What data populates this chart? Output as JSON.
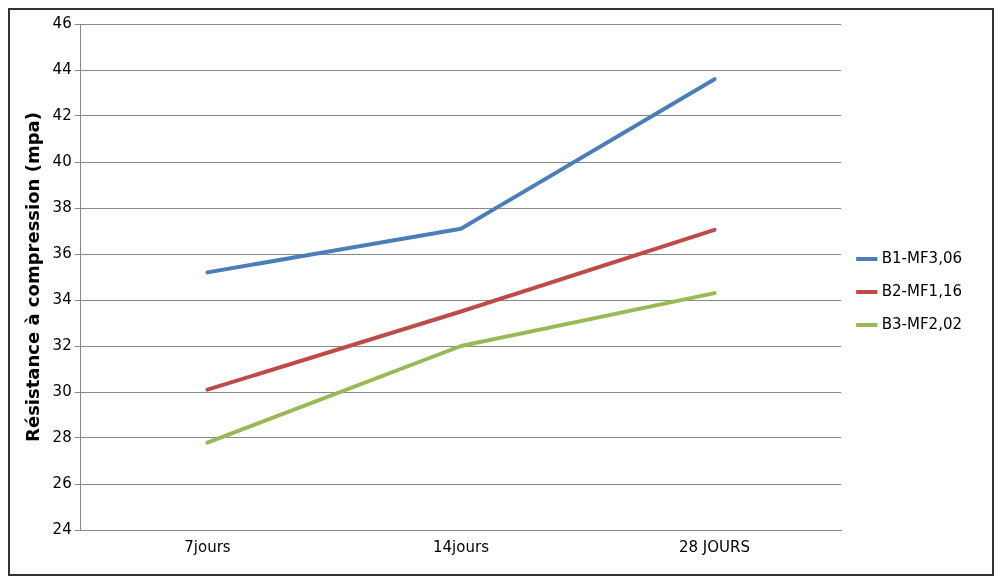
{
  "chart_data": {
    "type": "line",
    "ylabel": "Résistance à compression (mpa)",
    "categories": [
      "7jours",
      "14jours",
      "28 JOURS"
    ],
    "series": [
      {
        "name": "B1-MF3,06",
        "color": "#4a7ebb",
        "values": [
          35.2,
          37.1,
          43.6
        ]
      },
      {
        "name": "B2-MF1,16",
        "color": "#be4b48",
        "values": [
          30.1,
          33.5,
          37.05
        ]
      },
      {
        "name": "B3-MF2,02",
        "color": "#98b954",
        "values": [
          27.8,
          32.0,
          34.3
        ]
      }
    ],
    "ylim": [
      24,
      46
    ],
    "yticks": [
      24,
      26,
      28,
      30,
      32,
      34,
      36,
      38,
      40,
      42,
      44,
      46
    ],
    "grid": "y",
    "legend": "right",
    "marker": "none",
    "line_style": "solid"
  }
}
